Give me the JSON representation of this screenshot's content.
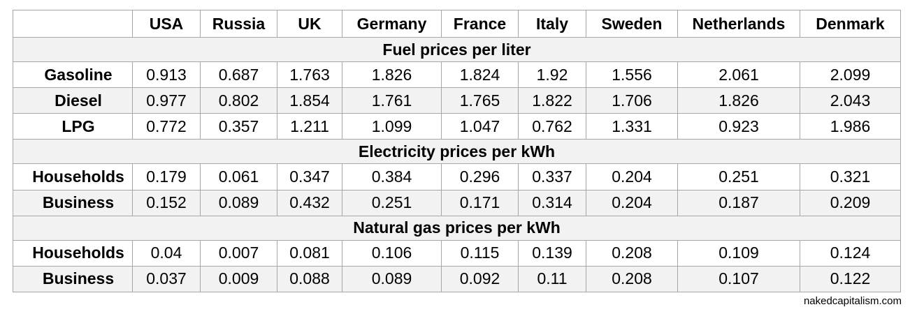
{
  "columns": [
    "",
    "USA",
    "Russia",
    "UK",
    "Germany",
    "France",
    "Italy",
    "Sweden",
    "Netherlands",
    "Denmark"
  ],
  "sections": [
    {
      "title": "Fuel prices per liter",
      "rows": [
        {
          "label": "Gasoline",
          "values": [
            "0.913",
            "0.687",
            "1.763",
            "1.826",
            "1.824",
            "1.92",
            "1.556",
            "2.061",
            "2.099"
          ]
        },
        {
          "label": "Diesel",
          "values": [
            "0.977",
            "0.802",
            "1.854",
            "1.761",
            "1.765",
            "1.822",
            "1.706",
            "1.826",
            "2.043"
          ]
        },
        {
          "label": "LPG",
          "values": [
            "0.772",
            "0.357",
            "1.211",
            "1.099",
            "1.047",
            "0.762",
            "1.331",
            "0.923",
            "1.986"
          ]
        }
      ]
    },
    {
      "title": "Electricity prices per kWh",
      "rows": [
        {
          "label": "Households",
          "values": [
            "0.179",
            "0.061",
            "0.347",
            "0.384",
            "0.296",
            "0.337",
            "0.204",
            "0.251",
            "0.321"
          ]
        },
        {
          "label": "Business",
          "values": [
            "0.152",
            "0.089",
            "0.432",
            "0.251",
            "0.171",
            "0.314",
            "0.204",
            "0.187",
            "0.209"
          ]
        }
      ]
    },
    {
      "title": "Natural gas prices per kWh",
      "rows": [
        {
          "label": "Households",
          "values": [
            "0.04",
            "0.007",
            "0.081",
            "0.106",
            "0.115",
            "0.139",
            "0.208",
            "0.109",
            "0.124"
          ]
        },
        {
          "label": "Business",
          "values": [
            "0.037",
            "0.009",
            "0.088",
            "0.089",
            "0.092",
            "0.11",
            "0.208",
            "0.107",
            "0.122"
          ]
        }
      ]
    }
  ],
  "credit": "nakedcapitalism.com"
}
